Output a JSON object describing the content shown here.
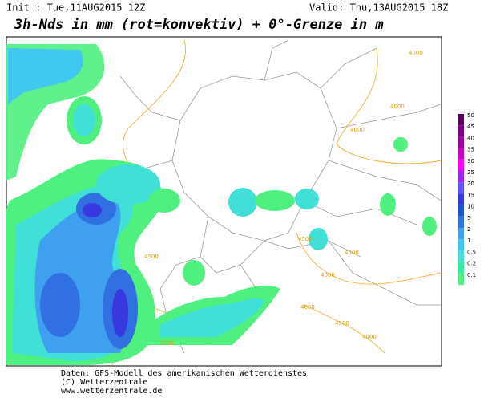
{
  "header": {
    "init": "Init : Tue,11AUG2015 12Z",
    "valid": "Valid: Thu,13AUG2015 18Z",
    "title": "3h-Nds in mm (rot=konvektiv) + 0°-Grenze in m"
  },
  "legend": [
    {
      "label": "50",
      "color": "#5a005a"
    },
    {
      "label": "45",
      "color": "#800080"
    },
    {
      "label": "40",
      "color": "#a000a0"
    },
    {
      "label": "35",
      "color": "#c800c8"
    },
    {
      "label": "30",
      "color": "#ff00ff"
    },
    {
      "label": "25",
      "color": "#a020f0"
    },
    {
      "label": "20",
      "color": "#6050ff"
    },
    {
      "label": "15",
      "color": "#3838e0"
    },
    {
      "label": "10",
      "color": "#2050d0"
    },
    {
      "label": "5",
      "color": "#3070e0"
    },
    {
      "label": "2",
      "color": "#3fa0f0"
    },
    {
      "label": "1",
      "color": "#40c8f0"
    },
    {
      "label": "0.5",
      "color": "#40e0d8"
    },
    {
      "label": "0.2",
      "color": "#30e8a0"
    },
    {
      "label": "0.1",
      "color": "#50f080"
    }
  ],
  "contour_labels": [
    "4000",
    "4000",
    "4000",
    "4500",
    "4000",
    "4500",
    "4000",
    "4000",
    "4500",
    "4000",
    "4000"
  ],
  "footer": [
    "Daten: GFS-Modell des amerikanischen Wetterdienstes",
    "(C) Wetterzentrale",
    "www.wetterzentrale.de"
  ]
}
